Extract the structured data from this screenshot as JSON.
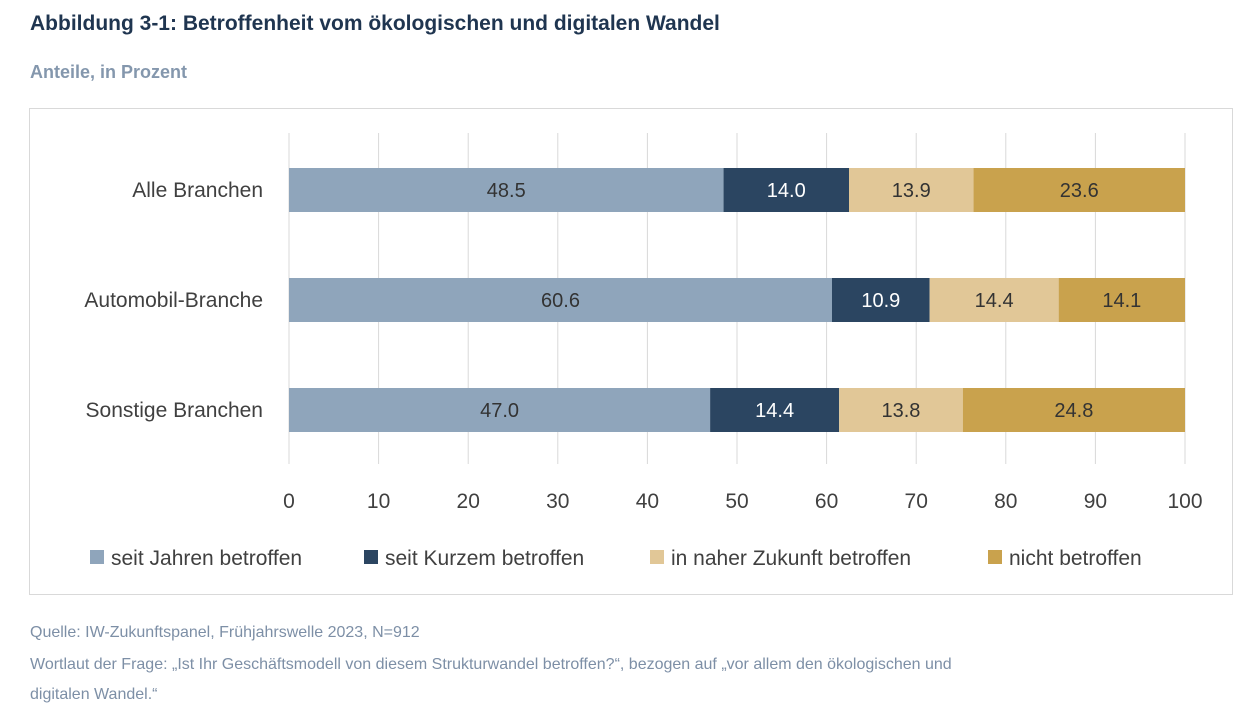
{
  "title": "Abbildung 3-1: Betroffenheit vom ökologischen und digitalen Wandel",
  "subtitle": "Anteile, in Prozent",
  "footer": {
    "source": "Quelle: IW-Zukunftspanel, Frühjahrswelle 2023, N=912",
    "question_line1": "Wortlaut der Frage: „Ist Ihr Geschäftsmodell von diesem Strukturwandel betroffen?“, bezogen auf „vor allem den ökologischen und",
    "question_line2": "digitalen Wandel.“"
  },
  "chart_data": {
    "type": "bar",
    "orientation": "horizontal",
    "stacked": true,
    "categories": [
      "Alle Branchen",
      "Automobil-Branche",
      "Sonstige Branchen"
    ],
    "series": [
      {
        "name": "seit Jahren betroffen",
        "color": "#8fa5bb",
        "label_color": "#333333",
        "values": [
          48.5,
          60.6,
          47.0
        ],
        "labels": [
          "48.5",
          "60.6",
          "47.0"
        ]
      },
      {
        "name": "seit Kurzem betroffen",
        "color": "#2b4561",
        "label_color": "#ffffff",
        "values": [
          14.0,
          10.9,
          14.4
        ],
        "labels": [
          "14.0",
          "10.9",
          "14.4"
        ]
      },
      {
        "name": "in naher Zukunft betroffen",
        "color": "#e1c797",
        "label_color": "#333333",
        "values": [
          13.9,
          14.4,
          13.8
        ],
        "labels": [
          "13.9",
          "14.4",
          "13.8"
        ]
      },
      {
        "name": "nicht betroffen",
        "color": "#c9a24d",
        "label_color": "#333333",
        "values": [
          23.6,
          14.1,
          24.8
        ],
        "labels": [
          "23.6",
          "14.1",
          "24.8"
        ]
      }
    ],
    "xlim": [
      0,
      100
    ],
    "x_ticks": [
      "0",
      "10",
      "20",
      "30",
      "40",
      "50",
      "60",
      "70",
      "80",
      "90",
      "100"
    ],
    "grid": "vertical",
    "legend_position": "bottom"
  }
}
